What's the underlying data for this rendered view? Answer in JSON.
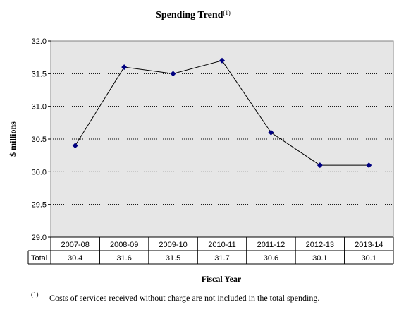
{
  "chart_data": {
    "type": "line",
    "title": "Spending Trend",
    "title_superscript": "(1)",
    "ylabel": "$ millions",
    "xlabel": "Fiscal Year",
    "categories": [
      "2007-08",
      "2008-09",
      "2009-10",
      "2010-11",
      "2011-12",
      "2012-13",
      "2013-14"
    ],
    "series": [
      {
        "name": "Total",
        "values": [
          30.4,
          31.6,
          31.5,
          31.7,
          30.6,
          30.1,
          30.1
        ],
        "value_labels": [
          "30.4",
          "31.6",
          "31.5",
          "31.7",
          "30.6",
          "30.1",
          "30.1"
        ],
        "color": "#000080"
      }
    ],
    "ylim": [
      29.0,
      32.0
    ],
    "yticks": [
      "29.0",
      "29.5",
      "30.0",
      "30.5",
      "31.0",
      "31.5",
      "32.0"
    ],
    "plot_background": "#e6e6e6",
    "grid": true,
    "data_table": true
  },
  "footnote": {
    "marker": "(1)",
    "text": "Costs of services received without charge are not included in the total spending."
  }
}
